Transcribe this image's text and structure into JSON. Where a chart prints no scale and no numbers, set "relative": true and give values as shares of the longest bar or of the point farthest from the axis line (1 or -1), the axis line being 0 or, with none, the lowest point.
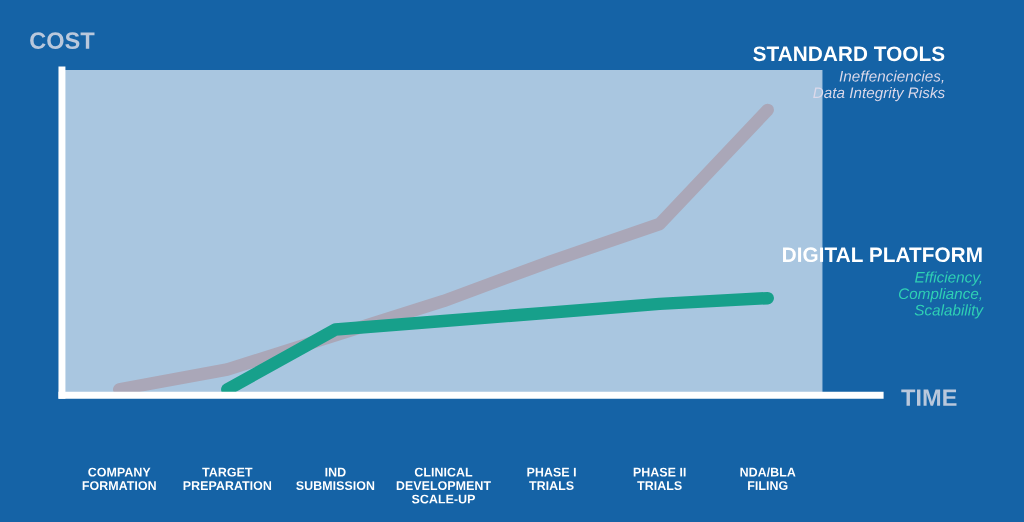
{
  "chart_data": {
    "type": "line",
    "relative": true,
    "xlabel": "TIME",
    "ylabel": "COST",
    "categories": [
      "COMPANY\nFORMATION",
      "TARGET\nPREPARATION",
      "IND\nSUBMISSION",
      "CLINICAL\nDEVELOPMENT\nSCALE-UP",
      "PHASE I\nTRIALS",
      "PHASE II\nTRIALS",
      "NDA/BLA\nFILING"
    ],
    "series": [
      {
        "name": "STANDARD TOOLS",
        "color": "#aaa7b8",
        "values": [
          0.02,
          0.09,
          0.21,
          0.33,
          0.47,
          0.6,
          1.0
        ]
      },
      {
        "name": "DIGITAL PLATFORM",
        "color": "#17a08b",
        "values": [
          null,
          0.02,
          0.23,
          0.26,
          0.29,
          0.32,
          0.34
        ]
      }
    ],
    "annotations": [
      "Ineffenciencies,\nData Integrity Risks",
      "Efficiency,\nCompliance,\nScalability"
    ],
    "legend": false,
    "grid": false,
    "marker": "none",
    "line_style": "solid"
  }
}
